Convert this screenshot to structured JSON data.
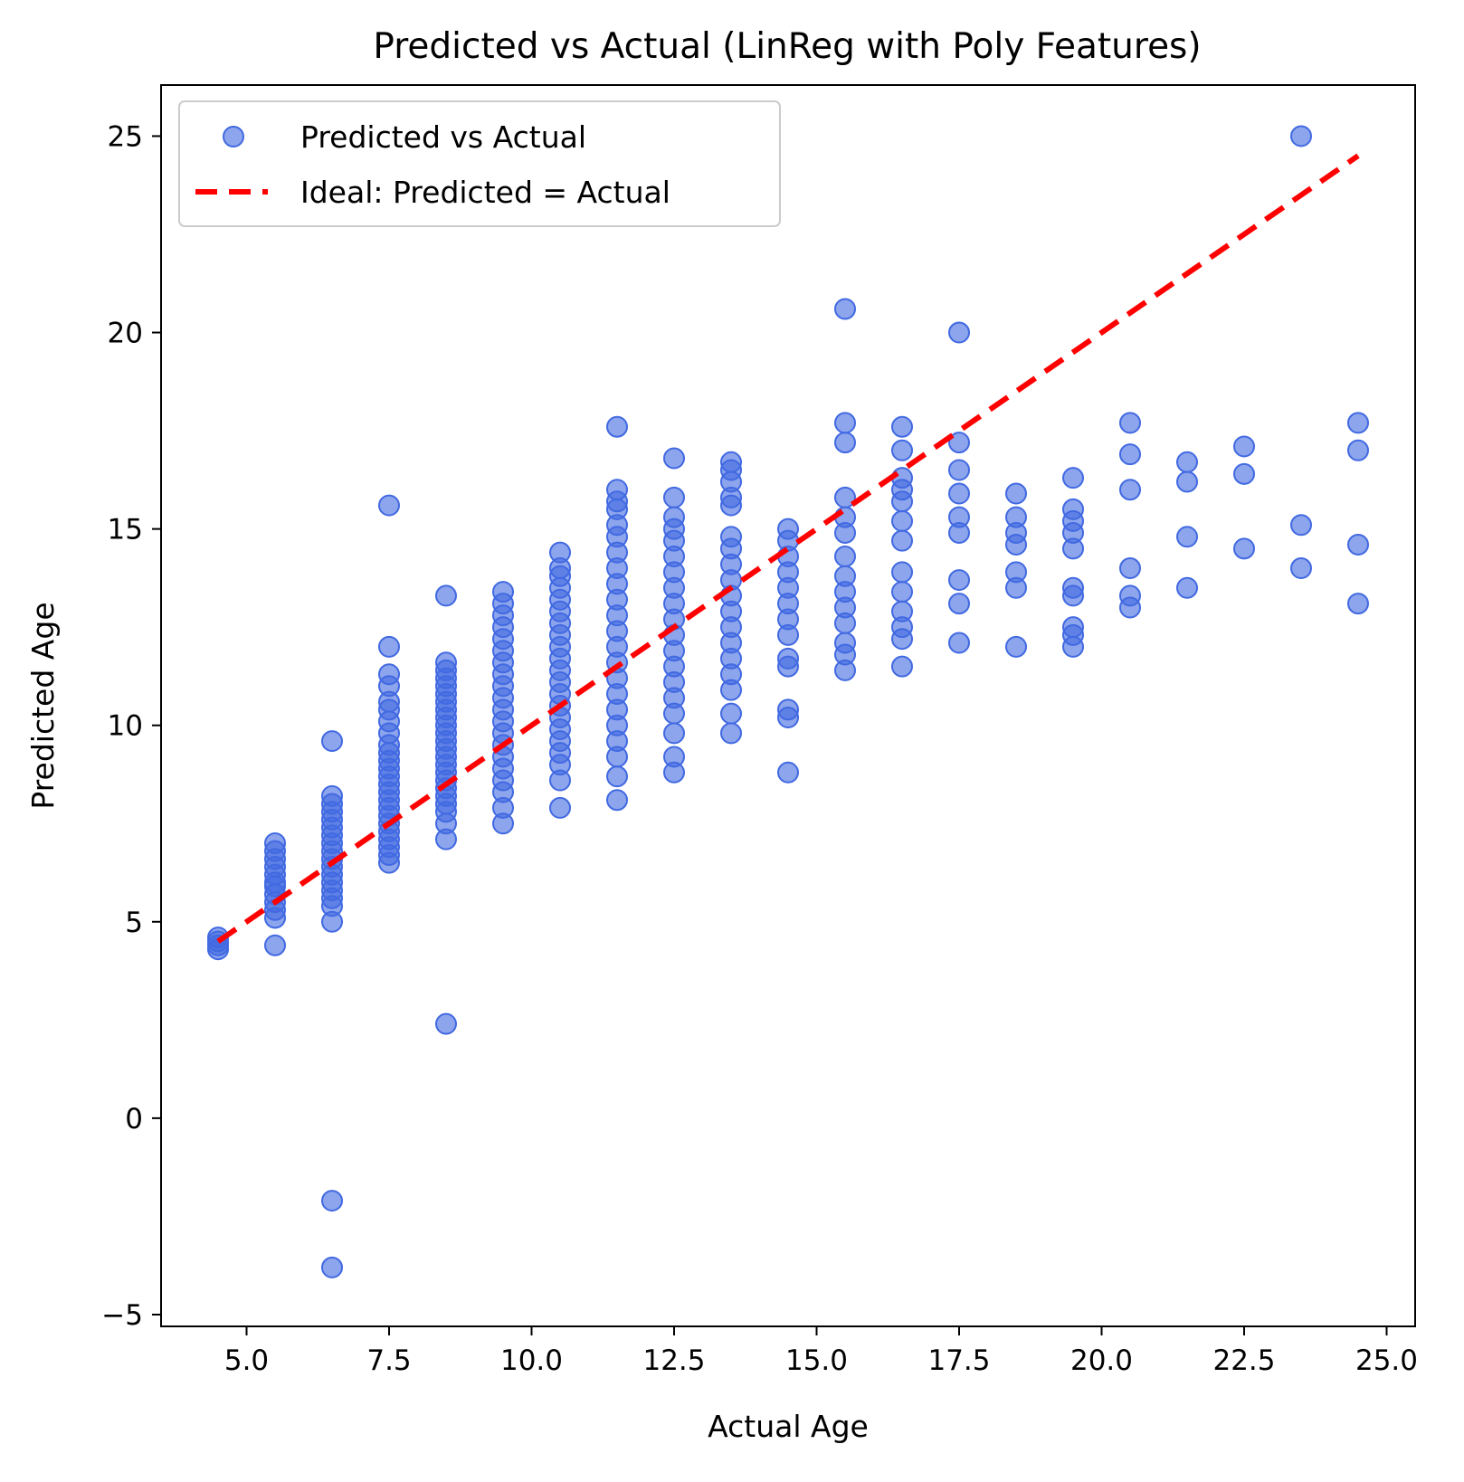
{
  "chart_data": {
    "type": "scatter",
    "title": "Predicted vs Actual (LinReg with Poly Features)",
    "xlabel": "Actual Age",
    "ylabel": "Predicted Age",
    "xlim": [
      3.5,
      25.5
    ],
    "ylim": [
      -5.3,
      26.3
    ],
    "xticks": [
      "5.0",
      "7.5",
      "10.0",
      "12.5",
      "15.0",
      "17.5",
      "20.0",
      "22.5",
      "25.0"
    ],
    "yticks": [
      "−5",
      "0",
      "5",
      "10",
      "15",
      "20",
      "25"
    ],
    "grid": false,
    "legend": {
      "placement": "upper-left",
      "entries": [
        "Predicted vs Actual",
        "Ideal: Predicted = Actual"
      ]
    },
    "colors": {
      "points": "#4169e1",
      "ideal_line": "#ff0000"
    },
    "ideal_line": {
      "x": [
        4.5,
        24.5
      ],
      "y": [
        4.5,
        24.5
      ]
    },
    "series": [
      {
        "name": "Predicted vs Actual",
        "groups": [
          {
            "x": 4.5,
            "y": [
              4.3,
              4.4,
              4.5,
              4.6
            ]
          },
          {
            "x": 5.5,
            "y": [
              4.4,
              5.1,
              5.3,
              5.5,
              5.7,
              5.9,
              6.0,
              6.2,
              6.4,
              6.6,
              6.8,
              7.0
            ]
          },
          {
            "x": 6.5,
            "y": [
              -3.8,
              -2.1,
              5.0,
              5.4,
              5.6,
              5.8,
              6.0,
              6.2,
              6.4,
              6.6,
              6.8,
              7.0,
              7.2,
              7.4,
              7.6,
              7.8,
              8.0,
              8.2,
              9.6
            ]
          },
          {
            "x": 7.5,
            "y": [
              6.5,
              6.7,
              6.9,
              7.1,
              7.3,
              7.5,
              7.7,
              7.9,
              8.1,
              8.3,
              8.5,
              8.7,
              8.9,
              9.1,
              9.3,
              9.5,
              9.8,
              10.1,
              10.4,
              10.6,
              11.0,
              11.3,
              12.0,
              15.6
            ]
          },
          {
            "x": 8.5,
            "y": [
              2.4,
              7.1,
              7.5,
              7.8,
              8.0,
              8.2,
              8.4,
              8.6,
              8.8,
              9.0,
              9.2,
              9.4,
              9.6,
              9.8,
              10.0,
              10.2,
              10.4,
              10.6,
              10.8,
              11.0,
              11.2,
              11.4,
              11.6,
              13.3
            ]
          },
          {
            "x": 9.5,
            "y": [
              7.5,
              7.9,
              8.3,
              8.6,
              8.9,
              9.2,
              9.5,
              9.8,
              10.1,
              10.4,
              10.7,
              11.0,
              11.3,
              11.6,
              11.9,
              12.2,
              12.5,
              12.8,
              13.1,
              13.4
            ]
          },
          {
            "x": 10.5,
            "y": [
              7.9,
              8.6,
              9.0,
              9.3,
              9.6,
              9.9,
              10.2,
              10.5,
              10.8,
              11.1,
              11.4,
              11.7,
              12.0,
              12.3,
              12.6,
              12.9,
              13.2,
              13.5,
              13.8,
              14.0,
              14.4
            ]
          },
          {
            "x": 11.5,
            "y": [
              8.1,
              8.7,
              9.2,
              9.6,
              10.0,
              10.4,
              10.8,
              11.2,
              11.6,
              12.0,
              12.4,
              12.8,
              13.2,
              13.6,
              14.0,
              14.4,
              14.8,
              15.1,
              15.5,
              15.7,
              16.0,
              17.6
            ]
          },
          {
            "x": 12.5,
            "y": [
              8.8,
              9.2,
              9.8,
              10.3,
              10.7,
              11.1,
              11.5,
              11.9,
              12.3,
              12.7,
              13.1,
              13.5,
              13.9,
              14.3,
              14.7,
              15.0,
              15.3,
              15.8,
              16.8
            ]
          },
          {
            "x": 13.5,
            "y": [
              9.8,
              10.3,
              10.9,
              11.3,
              11.7,
              12.1,
              12.5,
              12.9,
              13.3,
              13.7,
              14.1,
              14.5,
              14.8,
              15.6,
              15.8,
              16.2,
              16.5,
              16.7
            ]
          },
          {
            "x": 14.5,
            "y": [
              8.8,
              10.2,
              10.4,
              11.5,
              11.7,
              12.3,
              12.7,
              13.1,
              13.5,
              13.9,
              14.3,
              14.7,
              15.0
            ]
          },
          {
            "x": 15.5,
            "y": [
              11.4,
              11.8,
              12.1,
              12.6,
              13.0,
              13.4,
              13.8,
              14.3,
              14.9,
              15.3,
              15.8,
              17.2,
              17.7,
              20.6
            ]
          },
          {
            "x": 16.5,
            "y": [
              11.5,
              12.2,
              12.5,
              12.9,
              13.4,
              13.9,
              14.7,
              15.2,
              15.7,
              16.0,
              16.3,
              17.0,
              17.6
            ]
          },
          {
            "x": 17.5,
            "y": [
              12.1,
              13.1,
              13.7,
              14.9,
              15.3,
              15.9,
              16.5,
              17.2,
              20.0
            ]
          },
          {
            "x": 18.5,
            "y": [
              12.0,
              13.5,
              13.9,
              14.6,
              14.9,
              15.3,
              15.9
            ]
          },
          {
            "x": 19.5,
            "y": [
              12.0,
              12.3,
              12.5,
              13.3,
              13.5,
              14.5,
              14.9,
              15.2,
              15.5,
              16.3
            ]
          },
          {
            "x": 20.5,
            "y": [
              13.0,
              13.3,
              14.0,
              16.0,
              16.9,
              17.7
            ]
          },
          {
            "x": 21.5,
            "y": [
              13.5,
              14.8,
              16.2,
              16.7
            ]
          },
          {
            "x": 22.5,
            "y": [
              14.5,
              16.4,
              17.1
            ]
          },
          {
            "x": 23.5,
            "y": [
              14.0,
              15.1,
              25.0
            ]
          },
          {
            "x": 24.5,
            "y": [
              13.1,
              14.6,
              17.0,
              17.7
            ]
          }
        ]
      }
    ]
  }
}
